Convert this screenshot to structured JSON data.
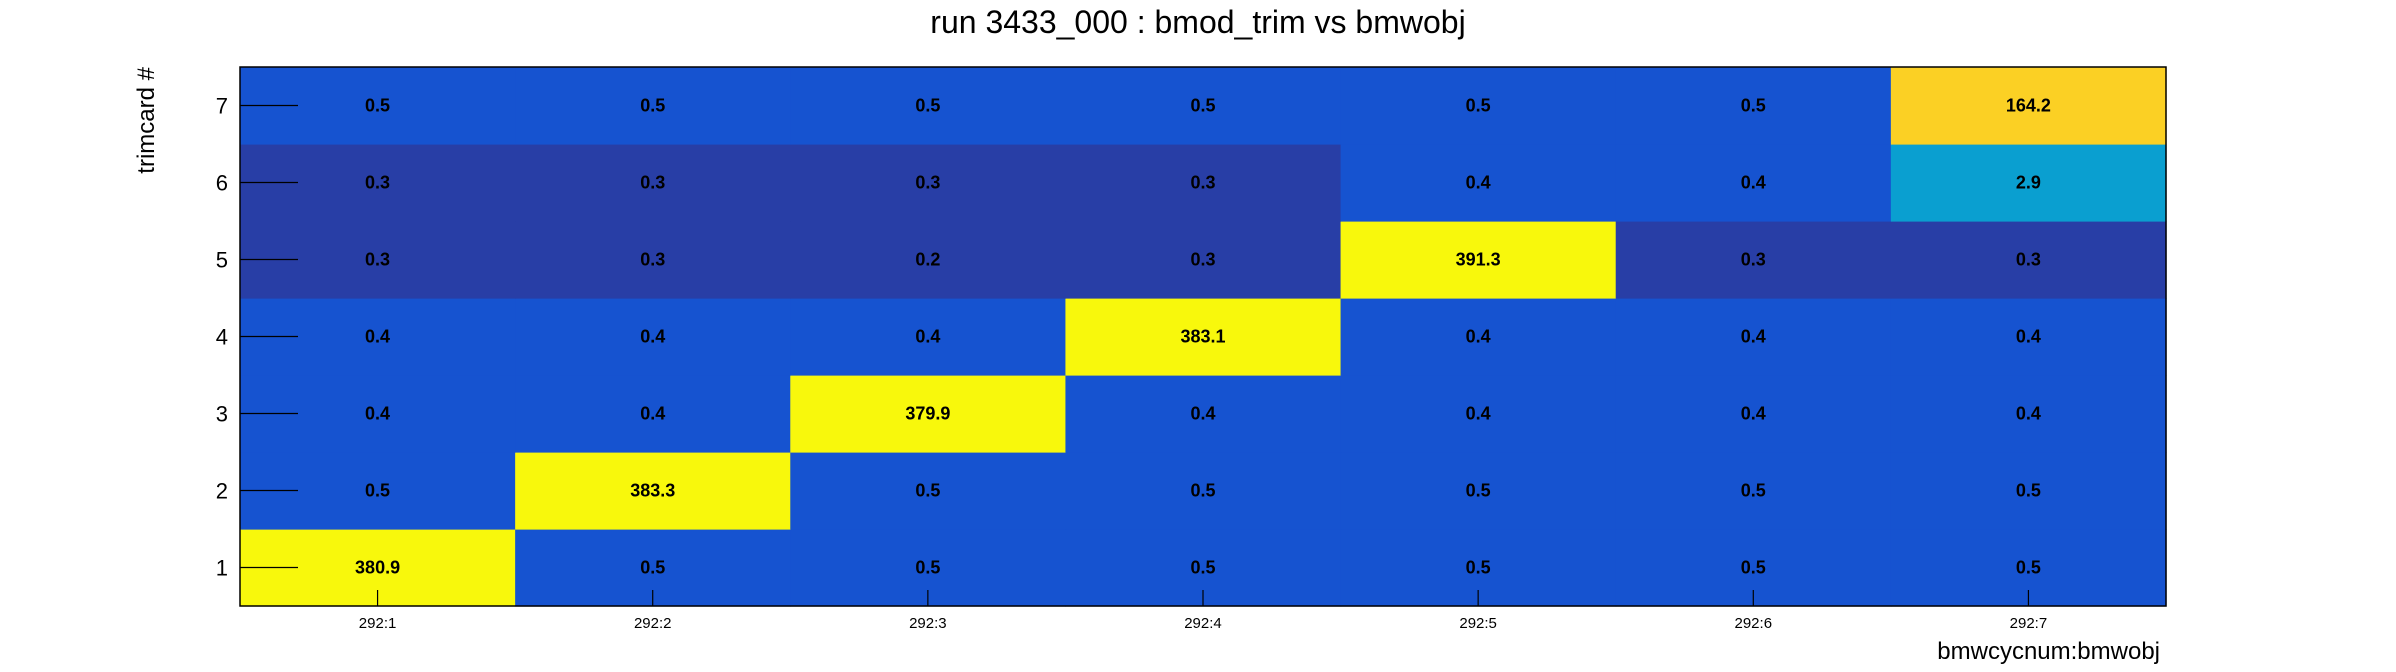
{
  "chart_data": {
    "type": "heatmap",
    "title": "run 3433_000 : bmod_trim vs bmwobj",
    "xlabel": "bmwcycnum:bmwobj",
    "ylabel": "trimcard #",
    "x_categories": [
      "292:1",
      "292:2",
      "292:3",
      "292:4",
      "292:5",
      "292:6",
      "292:7"
    ],
    "y_categories": [
      "1",
      "2",
      "3",
      "4",
      "5",
      "6",
      "7"
    ],
    "values": [
      [
        380.9,
        0.5,
        0.5,
        0.5,
        0.5,
        0.5,
        0.5
      ],
      [
        0.5,
        383.3,
        0.5,
        0.5,
        0.5,
        0.5,
        0.5
      ],
      [
        0.4,
        0.4,
        379.9,
        0.4,
        0.4,
        0.4,
        0.4
      ],
      [
        0.4,
        0.4,
        0.4,
        383.1,
        0.4,
        0.4,
        0.4
      ],
      [
        0.3,
        0.3,
        0.2,
        0.3,
        391.3,
        0.3,
        0.3
      ],
      [
        0.3,
        0.3,
        0.3,
        0.3,
        0.4,
        0.4,
        2.9
      ],
      [
        0.5,
        0.5,
        0.5,
        0.5,
        0.5,
        0.5,
        164.2
      ]
    ],
    "value_labels": [
      [
        "380.9",
        "0.5",
        "0.5",
        "0.5",
        "0.5",
        "0.5",
        "0.5"
      ],
      [
        "0.5",
        "383.3",
        "0.5",
        "0.5",
        "0.5",
        "0.5",
        "0.5"
      ],
      [
        "0.4",
        "0.4",
        "379.9",
        "0.4",
        "0.4",
        "0.4",
        "0.4"
      ],
      [
        "0.4",
        "0.4",
        "0.4",
        "383.1",
        "0.4",
        "0.4",
        "0.4"
      ],
      [
        "0.3",
        "0.3",
        "0.2",
        "0.3",
        "391.3",
        "0.3",
        "0.3"
      ],
      [
        "0.3",
        "0.3",
        "0.3",
        "0.3",
        "0.4",
        "0.4",
        "2.9"
      ],
      [
        "0.5",
        "0.5",
        "0.5",
        "0.5",
        "0.5",
        "0.5",
        "164.2"
      ]
    ],
    "colorscale": {
      "low": "#283ea6",
      "mid": "#1653d0",
      "cyan": "#0a9fd0",
      "amber": "#fbd024",
      "high": "#f8f80c"
    },
    "grid": false,
    "legend": "none"
  }
}
